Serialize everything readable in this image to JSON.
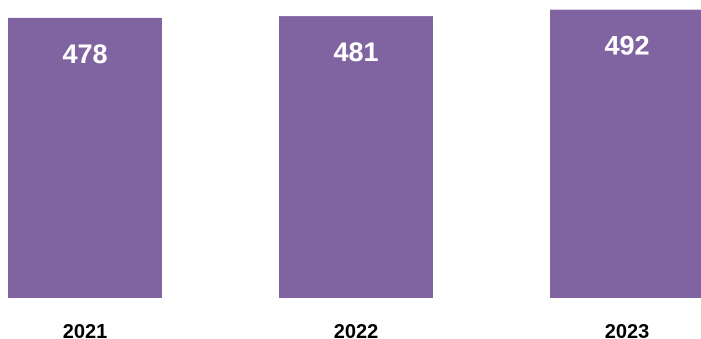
{
  "chart_data": {
    "type": "bar",
    "categories": [
      "2021",
      "2022",
      "2023"
    ],
    "values": [
      478,
      481,
      492
    ],
    "title": "",
    "xlabel": "",
    "ylabel": "",
    "ylim": [
      0,
      500
    ],
    "grid": false,
    "legend": "none",
    "colors": {
      "bar": "#8064a2",
      "value_label": "#ffffff",
      "tick_label": "#000000"
    }
  }
}
